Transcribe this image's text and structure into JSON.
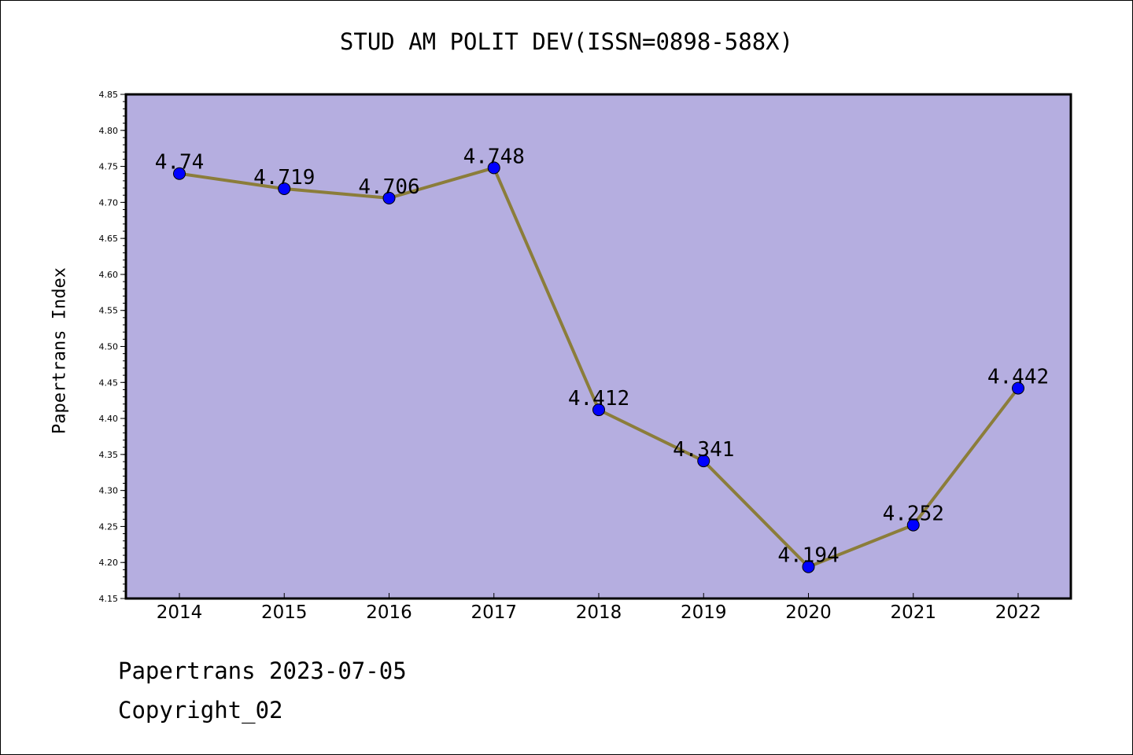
{
  "chart_data": {
    "type": "line",
    "title": "STUD AM POLIT DEV(ISSN=0898-588X)",
    "xlabel": "",
    "ylabel": "Papertrans Index",
    "categories": [
      "2014",
      "2015",
      "2016",
      "2017",
      "2018",
      "2019",
      "2020",
      "2021",
      "2022"
    ],
    "series": [
      {
        "values": [
          4.74,
          4.719,
          4.706,
          4.748,
          4.412,
          4.341,
          4.194,
          4.252,
          4.442
        ],
        "labels": [
          "4.74",
          "4.719",
          "4.706",
          "4.748",
          "4.412",
          "4.341",
          "4.194",
          "4.252",
          "4.442"
        ]
      }
    ],
    "ylim": [
      4.15,
      4.85
    ],
    "yticks": [
      "4.15",
      "4.20",
      "4.25",
      "4.30",
      "4.35",
      "4.40",
      "4.45",
      "4.50",
      "4.55",
      "4.60",
      "4.65",
      "4.70",
      "4.75",
      "4.80",
      "4.85"
    ],
    "grid": false,
    "colors": {
      "plot_background": "#b5aee0",
      "line": "#8b7d3a",
      "marker": "#0000ff"
    }
  },
  "footer": {
    "date_line": "Papertrans 2023-07-05",
    "copyright_line": "Copyright_02"
  }
}
